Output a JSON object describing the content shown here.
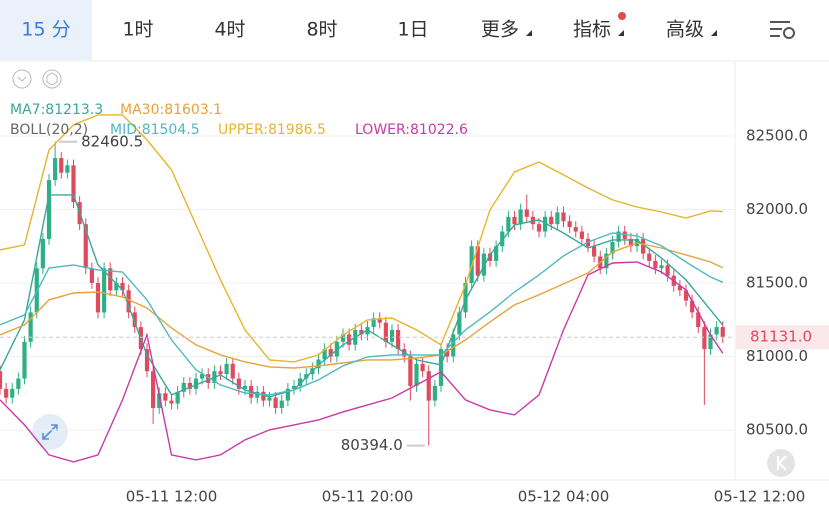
{
  "toolbar": {
    "tabs": [
      "15 分",
      "1时",
      "4时",
      "8时",
      "1日",
      "更多",
      "指标",
      "高级"
    ]
  },
  "chart_data": {
    "type": "candlestick",
    "x": [
      "05-11 05:00",
      "05-11 05:15",
      "05-11 05:30",
      "05-11 05:45",
      "05-11 06:00",
      "05-11 06:15",
      "05-11 06:30",
      "05-11 06:45",
      "05-11 07:00",
      "05-11 07:15",
      "05-11 07:30",
      "05-11 07:45",
      "05-11 08:00",
      "05-11 08:15",
      "05-11 08:30",
      "05-11 08:45",
      "05-11 09:00",
      "05-11 09:15",
      "05-11 09:30",
      "05-11 09:45",
      "05-11 10:00",
      "05-11 10:15",
      "05-11 10:30",
      "05-11 10:45",
      "05-11 11:00",
      "05-11 11:15",
      "05-11 11:30",
      "05-11 11:45",
      "05-11 12:00",
      "05-11 12:15",
      "05-11 12:30",
      "05-11 12:45",
      "05-11 13:00",
      "05-11 13:15",
      "05-11 13:30",
      "05-11 13:45",
      "05-11 14:00",
      "05-11 14:15",
      "05-11 14:30",
      "05-11 14:45",
      "05-11 15:00",
      "05-11 15:15",
      "05-11 15:30",
      "05-11 15:45",
      "05-11 16:00",
      "05-11 16:15",
      "05-11 16:30",
      "05-11 16:45",
      "05-11 17:00",
      "05-11 17:15",
      "05-11 17:30",
      "05-11 17:45",
      "05-11 18:00",
      "05-11 18:15",
      "05-11 18:30",
      "05-11 18:45",
      "05-11 19:00",
      "05-11 19:15",
      "05-11 19:30",
      "05-11 19:45",
      "05-11 20:00",
      "05-11 20:15",
      "05-11 20:30",
      "05-11 20:45",
      "05-11 21:00",
      "05-11 21:15",
      "05-11 21:30",
      "05-11 21:45",
      "05-11 22:00",
      "05-11 22:15",
      "05-11 22:30",
      "05-11 22:45",
      "05-11 23:00",
      "05-11 23:15",
      "05-11 23:30",
      "05-11 23:45",
      "05-12 00:00",
      "05-12 00:15",
      "05-12 00:30",
      "05-12 00:45",
      "05-12 01:00",
      "05-12 01:15",
      "05-12 01:30",
      "05-12 01:45",
      "05-12 02:00",
      "05-12 02:15",
      "05-12 02:30",
      "05-12 02:45",
      "05-12 03:00",
      "05-12 03:15",
      "05-12 03:30",
      "05-12 03:45",
      "05-12 04:00",
      "05-12 04:15",
      "05-12 04:30",
      "05-12 04:45",
      "05-12 05:00",
      "05-12 05:15",
      "05-12 05:30",
      "05-12 05:45",
      "05-12 06:00",
      "05-12 06:15",
      "05-12 06:30",
      "05-12 06:45",
      "05-12 07:00",
      "05-12 07:15",
      "05-12 07:30",
      "05-12 07:45",
      "05-12 08:00",
      "05-12 08:15",
      "05-12 08:30",
      "05-12 08:45",
      "05-12 09:00",
      "05-12 09:15",
      "05-12 09:30",
      "05-12 09:45",
      "05-12 10:00",
      "05-12 10:15",
      "05-12 10:30"
    ],
    "open": [
      80900,
      80780,
      80720,
      80780,
      80850,
      81100,
      81300,
      81600,
      81800,
      82200,
      82350,
      82250,
      82300,
      82050,
      81900,
      81600,
      81500,
      81300,
      81600,
      81450,
      81500,
      81450,
      81300,
      81200,
      81050,
      80900,
      80650,
      80750,
      80700,
      80680,
      80760,
      80820,
      80780,
      80850,
      80880,
      80820,
      80900,
      80880,
      80950,
      80850,
      80780,
      80800,
      80720,
      80760,
      80700,
      80720,
      80650,
      80700,
      80780,
      80800,
      80850,
      80880,
      80920,
      80980,
      81050,
      81000,
      81100,
      81150,
      81080,
      81180,
      81150,
      81200,
      81260,
      81230,
      81100,
      81180,
      81050,
      81000,
      80800,
      80950,
      80900,
      80700,
      80800,
      81050,
      81000,
      81150,
      81300,
      81500,
      81750,
      81550,
      81700,
      81650,
      81750,
      81850,
      81950,
      81900,
      82000,
      81950,
      81900,
      81850,
      81950,
      81900,
      81980,
      81920,
      81880,
      81850,
      81800,
      81750,
      81680,
      81600,
      81700,
      81780,
      81850,
      81800,
      81750,
      81800,
      81700,
      81650,
      81600,
      81620,
      81550,
      81480,
      81450,
      81380,
      81300,
      81200,
      81050,
      81150,
      81200
    ],
    "high": [
      80940,
      80820,
      80820,
      80890,
      81140,
      81340,
      81640,
      81840,
      82240,
      82460.5,
      82390,
      82340,
      82340,
      82090,
      81940,
      81640,
      81540,
      81640,
      81640,
      81540,
      81540,
      81490,
      81340,
      81240,
      81090,
      80940,
      80790,
      80790,
      80740,
      80800,
      80860,
      80860,
      80890,
      80920,
      80920,
      80940,
      80940,
      80990,
      80990,
      80890,
      80840,
      80840,
      80800,
      80800,
      80760,
      80760,
      80740,
      80820,
      80840,
      80890,
      80920,
      80960,
      81020,
      81090,
      81090,
      81140,
      81190,
      81190,
      81220,
      81220,
      81240,
      81300,
      81300,
      81270,
      81220,
      81220,
      81090,
      81040,
      80990,
      80990,
      80940,
      80840,
      81090,
      81090,
      81190,
      81340,
      81540,
      81790,
      81790,
      81740,
      81740,
      81790,
      81890,
      81990,
      81990,
      82040,
      82100,
      81990,
      81940,
      81990,
      81990,
      82020,
      82020,
      81960,
      81920,
      81890,
      81840,
      81790,
      81720,
      81740,
      81820,
      81890,
      81890,
      81840,
      81840,
      81840,
      81740,
      81690,
      81660,
      81660,
      81590,
      81520,
      81490,
      81420,
      81340,
      81240,
      81190,
      81240,
      81240
    ],
    "low": [
      80740,
      80680,
      80680,
      80740,
      80810,
      81060,
      81260,
      81560,
      81760,
      82160,
      82210,
      82210,
      82010,
      81860,
      81560,
      81460,
      81260,
      81260,
      81410,
      81410,
      81410,
      81260,
      81160,
      81010,
      80860,
      80540,
      80610,
      80660,
      80640,
      80640,
      80720,
      80740,
      80740,
      80810,
      80780,
      80780,
      80840,
      80840,
      80810,
      80740,
      80740,
      80680,
      80680,
      80660,
      80660,
      80610,
      80610,
      80660,
      80740,
      80760,
      80810,
      80840,
      80880,
      80940,
      80960,
      80960,
      81060,
      81040,
      81040,
      81110,
      81110,
      81160,
      81190,
      81060,
      81060,
      81010,
      80960,
      80700,
      80760,
      80860,
      80394,
      80660,
      80760,
      80960,
      80960,
      81110,
      81260,
      81460,
      81510,
      81510,
      81610,
      81610,
      81710,
      81810,
      81860,
      81860,
      81910,
      81860,
      81810,
      81810,
      81860,
      81860,
      81880,
      81840,
      81810,
      81760,
      81710,
      81640,
      81560,
      81560,
      81660,
      81740,
      81760,
      81710,
      81710,
      81660,
      81610,
      81560,
      81560,
      81510,
      81440,
      81410,
      81340,
      81260,
      81160,
      80670,
      81010,
      81110,
      81091
    ],
    "close": [
      80780,
      80720,
      80780,
      80850,
      81100,
      81300,
      81600,
      81800,
      82200,
      82350,
      82250,
      82300,
      82050,
      81900,
      81600,
      81500,
      81300,
      81600,
      81450,
      81500,
      81450,
      81300,
      81200,
      81050,
      80900,
      80650,
      80750,
      80700,
      80680,
      80760,
      80820,
      80780,
      80850,
      80880,
      80820,
      80900,
      80880,
      80950,
      80850,
      80780,
      80800,
      80720,
      80760,
      80700,
      80720,
      80650,
      80700,
      80780,
      80800,
      80850,
      80880,
      80920,
      80980,
      81050,
      81000,
      81100,
      81150,
      81080,
      81180,
      81150,
      81200,
      81260,
      81230,
      81100,
      81180,
      81050,
      81000,
      80800,
      80950,
      80900,
      80700,
      80800,
      81050,
      81000,
      81150,
      81300,
      81500,
      81750,
      81550,
      81700,
      81650,
      81750,
      81850,
      81950,
      81900,
      82000,
      81950,
      81900,
      81850,
      81950,
      81900,
      81980,
      81920,
      81880,
      81850,
      81800,
      81750,
      81680,
      81600,
      81700,
      81780,
      81850,
      81800,
      81750,
      81800,
      81700,
      81650,
      81600,
      81620,
      81550,
      81480,
      81450,
      81380,
      81300,
      81200,
      81050,
      81150,
      81200,
      81131
    ],
    "up_color": "#2eaf86",
    "down_color": "#e04a5f",
    "max_label": "82460.5",
    "min_label": "80394.0",
    "last_price": {
      "value": 81131,
      "label": "81131.0"
    },
    "xlim": [
      "05-11 05:00",
      "05-12 11:00"
    ],
    "xticks": [
      "05-11 12:00",
      "05-11 20:00",
      "05-12 04:00",
      "05-12 12:00"
    ],
    "ylim": [
      80160,
      83003
    ],
    "yticks": [
      {
        "value": 80500,
        "label": "80500.0"
      },
      {
        "value": 81000,
        "label": "81000.0"
      },
      {
        "value": 81500,
        "label": "81500.0"
      },
      {
        "value": 82000,
        "label": "82000.0"
      },
      {
        "value": 82500,
        "label": "82500.0"
      }
    ],
    "grid": true,
    "overlays": {
      "boll_label": "BOLL(20,2)",
      "x": [
        "05-11 05:00",
        "05-11 06:00",
        "05-11 07:00",
        "05-11 08:00",
        "05-11 09:00",
        "05-11 10:00",
        "05-11 11:00",
        "05-11 12:00",
        "05-11 13:00",
        "05-11 14:00",
        "05-11 15:00",
        "05-11 16:00",
        "05-11 17:00",
        "05-11 18:00",
        "05-11 19:00",
        "05-11 20:00",
        "05-11 21:00",
        "05-11 22:00",
        "05-11 23:00",
        "05-12 00:00",
        "05-12 01:00",
        "05-12 02:00",
        "05-12 03:00",
        "05-12 04:00",
        "05-12 05:00",
        "05-12 06:00",
        "05-12 07:00",
        "05-12 08:00",
        "05-12 09:00",
        "05-12 10:00",
        "05-12 10:30"
      ],
      "series": [
        {
          "name": "MA7:81213.3",
          "color": "#3aa896",
          "values": [
            80909,
            81249,
            82099,
            82099,
            81623,
            81453,
            81011,
            80739,
            80807,
            80875,
            80773,
            80725,
            80773,
            80943,
            81079,
            81181,
            81079,
            80977,
            80943,
            81385,
            81691,
            81895,
            81929,
            81840,
            81738,
            81793,
            81793,
            81670,
            81521,
            81317,
            81213.3
          ]
        },
        {
          "name": "MA30:81603.1",
          "color": "#e9a23b",
          "values": [
            81147,
            81215,
            81385,
            81432,
            81439,
            81405,
            81330,
            81194,
            81079,
            81011,
            80963,
            80929,
            80922,
            80936,
            80956,
            80977,
            80977,
            80990,
            81011,
            81113,
            81235,
            81351,
            81419,
            81494,
            81568,
            81711,
            81772,
            81738,
            81691,
            81643,
            81603.1
          ]
        },
        {
          "name": "MID:81504.5",
          "color": "#4fb9c0",
          "values": [
            81215,
            81283,
            81602,
            81623,
            81589,
            81575,
            81385,
            81113,
            80909,
            80807,
            80752,
            80739,
            80773,
            80841,
            80936,
            80997,
            81011,
            81011,
            81011,
            81181,
            81303,
            81439,
            81555,
            81684,
            81779,
            81840,
            81820,
            81752,
            81643,
            81541,
            81504.5
          ]
        },
        {
          "name": "UPPER:81986.5",
          "color": "#e6b52c",
          "values": [
            81725,
            81759,
            82405,
            82575,
            82643,
            82643,
            82473,
            82269,
            81895,
            81521,
            81181,
            80977,
            80963,
            81011,
            81147,
            81249,
            81262,
            81181,
            81079,
            81487,
            81997,
            82255,
            82323,
            82235,
            82146,
            82065,
            82017,
            81983,
            81942,
            81990,
            81986.5
          ]
        },
        {
          "name": "LOWER:81022.6",
          "color": "#c93aa6",
          "values": [
            80705,
            80535,
            80331,
            80283,
            80331,
            80705,
            81147,
            80331,
            80297,
            80331,
            80433,
            80501,
            80535,
            80569,
            80623,
            80671,
            80718,
            80807,
            80895,
            80705,
            80637,
            80603,
            80739,
            81181,
            81555,
            81636,
            81643,
            81575,
            81453,
            81147,
            81022.6
          ]
        }
      ]
    }
  }
}
